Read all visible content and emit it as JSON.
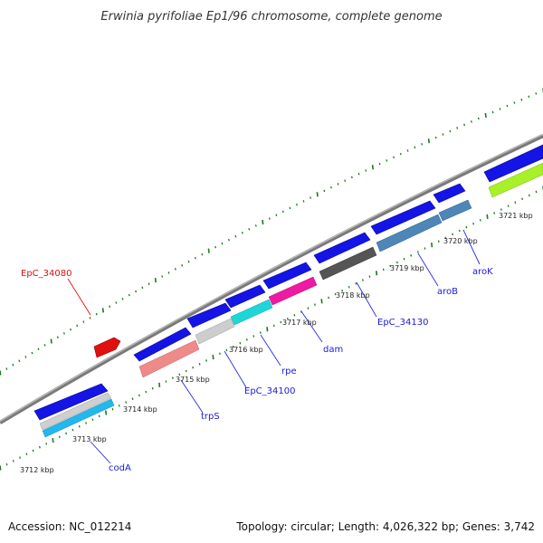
{
  "title": "Erwinia pyrifoliae Ep1/96 chromosome, complete genome",
  "accession": "Accession: NC_012214",
  "topology": "Topology: circular; Length: 4,026,322 bp; Genes: 3,742",
  "colors": {
    "backbone": "#808080",
    "ticks": "#1a7a1a",
    "blue_gene": "#1414e6",
    "leader_blue": "#2a2ae8",
    "leader_red": "#e01010"
  },
  "tick_labels": [
    "3712 kbp",
    "3713 kbp",
    "3714 kbp",
    "3715 kbp",
    "3716 kbp",
    "3717 kbp",
    "3718 kbp",
    "3719 kbp",
    "3720 kbp",
    "3721 kbp"
  ],
  "gene_labels": [
    {
      "name": "EpC_34080",
      "color": "red"
    },
    {
      "name": "codA",
      "color": "blue"
    },
    {
      "name": "trpS",
      "color": "blue"
    },
    {
      "name": "EpC_34100",
      "color": "blue"
    },
    {
      "name": "rpe",
      "color": "blue"
    },
    {
      "name": "dam",
      "color": "blue"
    },
    {
      "name": "EpC_34130",
      "color": "blue"
    },
    {
      "name": "aroB",
      "color": "blue"
    },
    {
      "name": "aroK",
      "color": "blue"
    }
  ]
}
